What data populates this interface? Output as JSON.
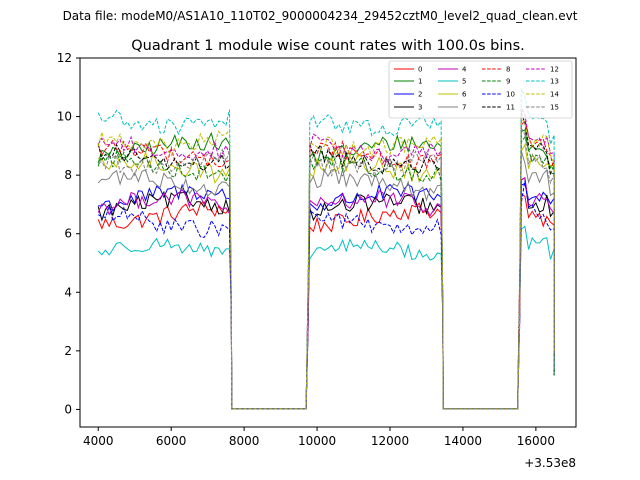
{
  "figure": {
    "suptitle": "Data file: modeM0/AS1A10_110T02_9000004234_29452cztM0_level2_quad_clean.evt"
  },
  "chart_data": {
    "type": "line",
    "title": "Quadrant 1 module wise count rates with 100.0s bins.",
    "xlabel": "",
    "ylabel": "",
    "x_offset_label": "+3.53e8",
    "x_offset": 353000000,
    "xlim": [
      3500,
      17100
    ],
    "ylim": [
      -0.6,
      12.0
    ],
    "xticks": [
      4000,
      6000,
      8000,
      10000,
      12000,
      14000,
      16000
    ],
    "yticks": [
      0,
      2,
      4,
      6,
      8,
      10,
      12
    ],
    "legend_location": "top-right",
    "x_units": "s (relative to offset)",
    "segments": [
      {
        "start": 4000,
        "end": 7600,
        "ramp_end": 7650
      },
      {
        "start": 9800,
        "end": 13400,
        "ramp_end": 13450
      },
      {
        "start": 15600,
        "end": 16500,
        "ramp_end": 16500
      }
    ],
    "bin_width": 100,
    "series": [
      {
        "name": "0",
        "color": "#ff0000",
        "dash": "solid",
        "level": 6.6,
        "noise": 0.3
      },
      {
        "name": "1",
        "color": "#008000",
        "dash": "solid",
        "level": 8.9,
        "noise": 0.3
      },
      {
        "name": "2",
        "color": "#0000ff",
        "dash": "solid",
        "level": 7.2,
        "noise": 0.3
      },
      {
        "name": "3",
        "color": "#000000",
        "dash": "solid",
        "level": 6.9,
        "noise": 0.3
      },
      {
        "name": "4",
        "color": "#bf00bf",
        "dash": "solid",
        "level": 7.0,
        "noise": 0.3
      },
      {
        "name": "5",
        "color": "#00bfbf",
        "dash": "solid",
        "level": 5.4,
        "noise": 0.25
      },
      {
        "name": "6",
        "color": "#bfbf00",
        "dash": "solid",
        "level": 8.2,
        "noise": 0.35
      },
      {
        "name": "7",
        "color": "#808080",
        "dash": "solid",
        "level": 7.7,
        "noise": 0.3
      },
      {
        "name": "8",
        "color": "#ff0000",
        "dash": "dashed",
        "level": 8.7,
        "noise": 0.3
      },
      {
        "name": "9",
        "color": "#008000",
        "dash": "dashed",
        "level": 8.3,
        "noise": 0.3
      },
      {
        "name": "10",
        "color": "#0000ff",
        "dash": "dashed",
        "level": 6.4,
        "noise": 0.3
      },
      {
        "name": "11",
        "color": "#000000",
        "dash": "dashed",
        "level": 8.6,
        "noise": 0.3
      },
      {
        "name": "12",
        "color": "#bf00bf",
        "dash": "dashed",
        "level": 9.0,
        "noise": 0.3
      },
      {
        "name": "13",
        "color": "#00bfbf",
        "dash": "dashed",
        "level": 9.9,
        "noise": 0.3
      },
      {
        "name": "14",
        "color": "#bfbf00",
        "dash": "dashed",
        "level": 9.2,
        "noise": 0.3
      },
      {
        "name": "15",
        "color": "#808080",
        "dash": "dashed",
        "level": 8.5,
        "noise": 0.3
      }
    ]
  }
}
